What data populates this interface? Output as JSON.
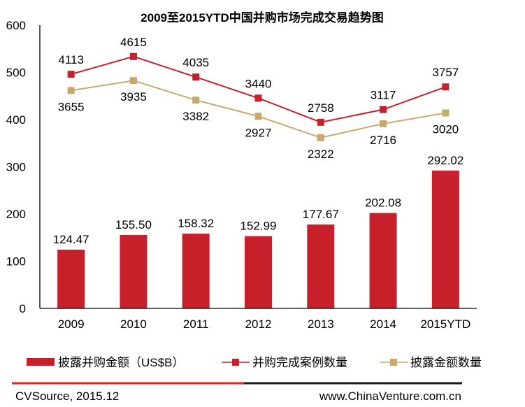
{
  "chart_data": {
    "type": "bar",
    "title": "2009至2015YTD中国并购市场完成交易趋势图",
    "categories": [
      "2009",
      "2010",
      "2011",
      "2012",
      "2013",
      "2014",
      "2015YTD"
    ],
    "xlabel": "",
    "ylabel": "",
    "ylim": [
      0,
      600
    ],
    "yticks": [
      "0",
      "100",
      "200",
      "300",
      "400",
      "500",
      "600"
    ],
    "secondary_ylim": [
      -2500,
      5500
    ],
    "grid": false,
    "legend_position": "bottom",
    "series": [
      {
        "name": "披露并购金额（US$B）",
        "type": "bar",
        "axis": "primary",
        "color": "#c8202b",
        "values": [
          124.47,
          155.5,
          158.32,
          152.99,
          177.67,
          202.08,
          292.02
        ],
        "labels": [
          "124.47",
          "155.50",
          "158.32",
          "152.99",
          "177.67",
          "202.08",
          "292.02"
        ]
      },
      {
        "name": "并购完成案例数量",
        "type": "line",
        "axis": "secondary",
        "color": "#c8202b",
        "label_position": "above",
        "values": [
          4113,
          4615,
          4035,
          3440,
          2758,
          3117,
          3757
        ],
        "labels": [
          "4113",
          "4615",
          "4035",
          "3440",
          "2758",
          "3117",
          "3757"
        ]
      },
      {
        "name": "披露金额数量",
        "type": "line",
        "axis": "secondary",
        "color": "#c8a96b",
        "label_position": "below",
        "values": [
          3655,
          3935,
          3382,
          2927,
          2322,
          2716,
          3020
        ],
        "labels": [
          "3655",
          "3935",
          "3382",
          "2927",
          "2322",
          "2716",
          "3020"
        ]
      }
    ]
  },
  "footer": {
    "source": "CVSource, 2015.12",
    "website": "www.ChinaVenture.com.cn",
    "rule_colors": [
      "#ff1a1a",
      "#1a1a1a"
    ]
  }
}
